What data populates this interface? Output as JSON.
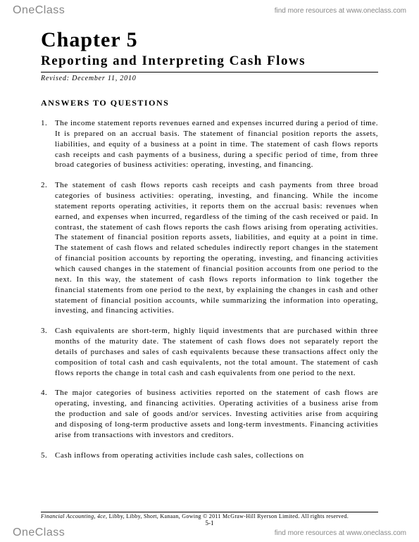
{
  "header": {
    "logo_one": "One",
    "logo_class": "Class",
    "tagline": "find more resources at www.oneclass.com"
  },
  "chapter": {
    "title": "Chapter 5",
    "subtitle": "Reporting and Interpreting Cash Flows",
    "revised": "Revised: December 11, 2010"
  },
  "section_heading": "ANSWERS TO QUESTIONS",
  "answers": [
    {
      "num": "1.",
      "text": "The income statement reports revenues earned and expenses incurred during a period of time. It is prepared on an accrual basis. The statement of financial position reports the assets, liabilities, and equity of a business at a point in time. The statement of cash flows reports cash receipts and cash payments of a business, during a specific period of time, from three broad categories of business activities: operating, investing, and financing."
    },
    {
      "num": "2.",
      "text": "The statement of cash flows reports cash receipts and cash payments from three broad categories of business activities: operating, investing, and financing. While the income statement reports operating activities, it reports them on the accrual basis: revenues when earned, and expenses when incurred, regardless of the timing of the cash received or paid. In contrast, the statement of cash flows reports the cash flows arising from operating activities. The statement of financial position reports assets, liabilities, and equity at a point in time. The statement of cash flows and related schedules indirectly report changes in the statement of financial position accounts by reporting the operating, investing, and financing activities which caused changes in the statement of financial position accounts from one period to the next. In this way, the statement of cash flows reports information to link together the financial statements from one period to the next, by explaining the changes in cash and other statement of financial position accounts, while summarizing the information into operating, investing, and financing activities."
    },
    {
      "num": "3.",
      "text": "Cash equivalents are short-term, highly liquid investments that are purchased within three months of the maturity date. The statement of cash flows does not separately report the details of purchases and sales of cash equivalents because these transactions affect only the composition of total cash and cash equivalents, not the total amount. The statement of cash flows reports the change in total cash and cash equivalents from one period to the next."
    },
    {
      "num": "4.",
      "text": "The major categories of business activities reported on the statement of cash flows are operating, investing, and financing activities. Operating activities of a business arise from the production and sale of goods and/or services. Investing activities arise from acquiring and disposing of long-term productive assets and long-term investments. Financing activities arise from transactions with investors and creditors."
    },
    {
      "num": "5.",
      "text": "Cash inflows from operating activities include cash sales, collections on"
    }
  ],
  "footer": {
    "book": "Financial Accounting, 4ce,",
    "rest": " Libby, Libby, Short, Kanaan, Gowing   © 2011 McGraw-Hill Ryerson Limited. All rights reserved.",
    "page_num": "5-1"
  }
}
